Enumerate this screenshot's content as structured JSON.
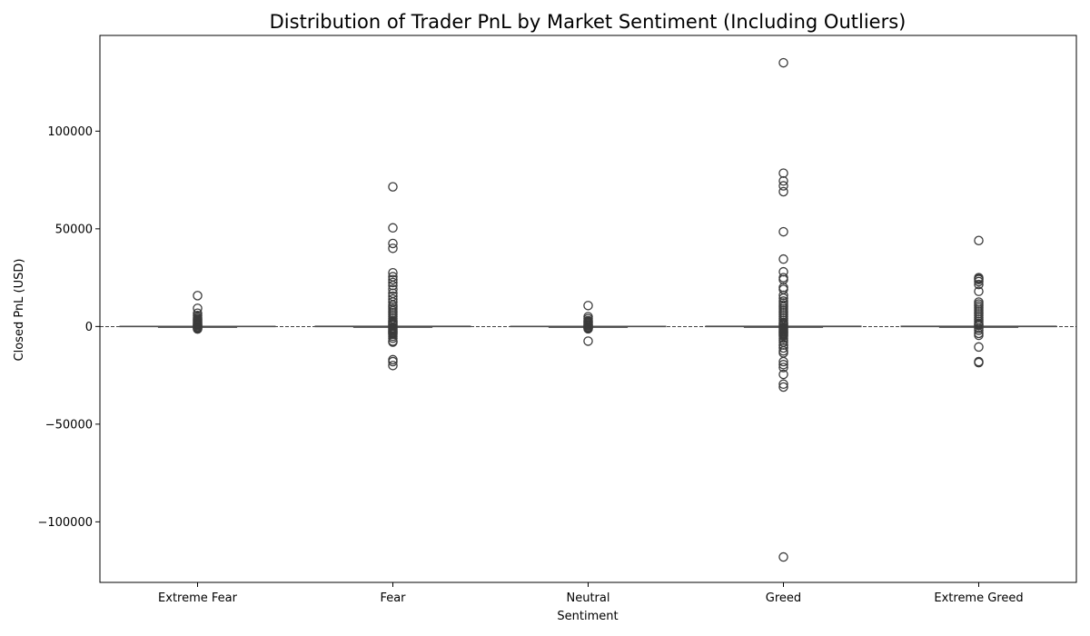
{
  "chart_data": {
    "type": "box",
    "title": "Distribution of Trader PnL by Market Sentiment (Including Outliers)",
    "xlabel": "Sentiment",
    "ylabel": "Closed PnL (USD)",
    "categories": [
      "Extreme Fear",
      "Fear",
      "Neutral",
      "Greed",
      "Extreme Greed"
    ],
    "ylim": [
      -131000,
      149000
    ],
    "yticks": [
      -100000,
      -50000,
      0,
      50000,
      100000
    ],
    "ytick_labels": [
      "−100000",
      "−50000",
      "0",
      "50000",
      "100000"
    ],
    "reference_line": 0,
    "grid": false,
    "series": [
      {
        "category": "Extreme Fear",
        "whisker_low": -40,
        "q1": -10,
        "median": 0,
        "q3": 30,
        "whisker_high": 80,
        "outliers": [
          15800,
          9300,
          6800,
          5600,
          4700,
          4000,
          3500,
          3000,
          2500,
          2000,
          1600,
          1200,
          900,
          600,
          400,
          -200,
          -500,
          -900,
          -1100,
          -1300
        ]
      },
      {
        "category": "Fear",
        "whisker_low": -60,
        "q1": -15,
        "median": 0,
        "q3": 40,
        "whisker_high": 110,
        "outliers": [
          71500,
          50500,
          42500,
          40000,
          27500,
          25500,
          24000,
          22500,
          21000,
          19000,
          17000,
          15500,
          14000,
          12500,
          11000,
          10000,
          9000,
          8000,
          7000,
          6000,
          5000,
          4000,
          3000,
          2500,
          2000,
          1500,
          1000,
          600,
          -500,
          -1000,
          -1500,
          -2000,
          -2500,
          -3000,
          -3500,
          -4000,
          -5000,
          -6000,
          -7500,
          -8000,
          -17000,
          -18000,
          -20000
        ]
      },
      {
        "category": "Neutral",
        "whisker_low": -30,
        "q1": -10,
        "median": 0,
        "q3": 25,
        "whisker_high": 70,
        "outliers": [
          10700,
          5000,
          4000,
          3000,
          2500,
          2000,
          1500,
          1000,
          600,
          300,
          -300,
          -600,
          -900,
          -1200,
          -7500
        ]
      },
      {
        "category": "Greed",
        "whisker_low": -60,
        "q1": -15,
        "median": 0,
        "q3": 40,
        "whisker_high": 110,
        "outliers": [
          135000,
          78500,
          74500,
          72000,
          69000,
          48500,
          34500,
          28000,
          25000,
          24000,
          20000,
          19000,
          16000,
          14500,
          13000,
          12000,
          11000,
          10000,
          9000,
          8000,
          7000,
          6000,
          5000,
          4000,
          3000,
          2000,
          1500,
          1000,
          500,
          -500,
          -1000,
          -1500,
          -2000,
          -2500,
          -3000,
          -3500,
          -4000,
          -4500,
          -5000,
          -6000,
          -7000,
          -8000,
          -9500,
          -11000,
          -12500,
          -13500,
          -18000,
          -19500,
          -21000,
          -24500,
          -29500,
          -31000,
          -118000
        ]
      },
      {
        "category": "Extreme Greed",
        "whisker_low": -60,
        "q1": -15,
        "median": 0,
        "q3": 40,
        "whisker_high": 110,
        "outliers": [
          44000,
          25000,
          24500,
          24000,
          23000,
          21500,
          18000,
          12500,
          11500,
          10500,
          9500,
          8500,
          7500,
          6500,
          5500,
          4500,
          3500,
          2500,
          1500,
          1000,
          500,
          -1000,
          -2000,
          -3500,
          -4500,
          -10500,
          -18000,
          -18500
        ]
      }
    ]
  }
}
